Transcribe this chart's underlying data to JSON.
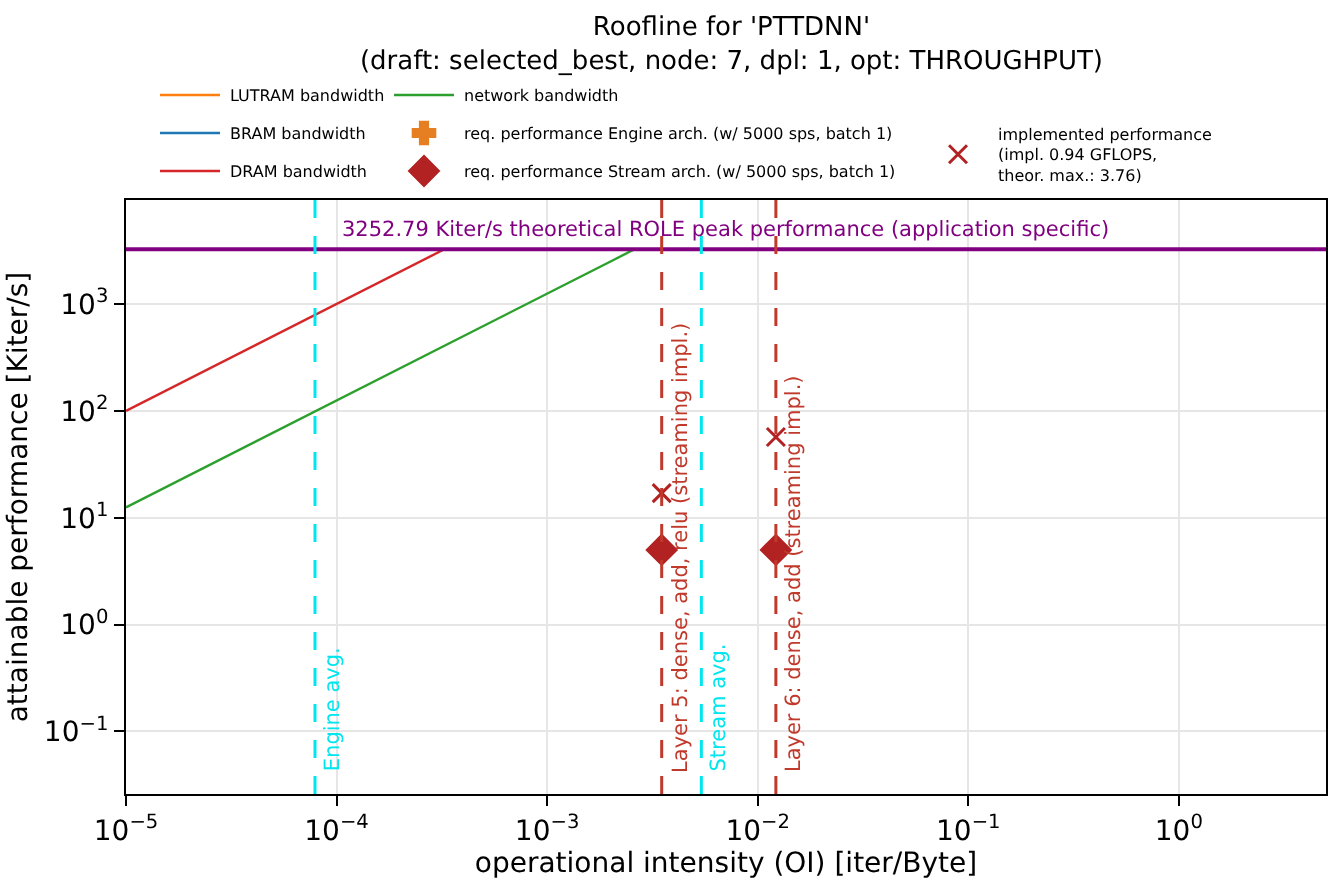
{
  "chart_data": {
    "type": "line",
    "title": "Roofline for 'PTTDNN'\n(draft: selected_best, node: 7, dpl: 1, opt: THROUGHPUT)",
    "xlabel": "operational intensity (OI) [iter/Byte]",
    "ylabel": "attainable performance [Kiter/s]",
    "log": "xy",
    "grid": true,
    "legend": "top",
    "xlim": [
      1e-05,
      5
    ],
    "ylim": [
      0.026,
      9400
    ],
    "xticks": [
      {
        "value": 1e-05,
        "label": "10$^{−5}$"
      },
      {
        "value": 0.0001,
        "label": "10$^{−4}$"
      },
      {
        "value": 0.001,
        "label": "10$^{−3}$"
      },
      {
        "value": 0.01,
        "label": "10$^{−2}$"
      },
      {
        "value": 0.1,
        "label": "10$^{−1}$"
      },
      {
        "value": 1,
        "label": "10$^{0}$"
      }
    ],
    "yticks": [
      {
        "value": 0.1,
        "label": "10$^{−1}$"
      },
      {
        "value": 1,
        "label": "10$^{0}$"
      },
      {
        "value": 10,
        "label": "10$^{1}$"
      },
      {
        "value": 100,
        "label": "10$^{2}$"
      },
      {
        "value": 1000,
        "label": "10$^{3}$"
      }
    ],
    "series": [
      {
        "name": "LUTRAM bandwidth",
        "type": "line",
        "color": "#ff7f0e"
      },
      {
        "name": "BRAM bandwidth",
        "type": "line",
        "color": "#1f77b4"
      },
      {
        "name": "DRAM bandwidth",
        "type": "line",
        "color": "#d62728",
        "x": [
          1e-05,
          0.000325
        ],
        "values": [
          100,
          3252.79
        ]
      },
      {
        "name": "network bandwidth",
        "type": "line",
        "color": "#2ca02c",
        "x": [
          1e-05,
          0.002,
          0.0026
        ],
        "values": [
          12.5,
          2500,
          3252.79
        ]
      },
      {
        "name": "req. performance Engine arch. (w/ 5000 sps, batch 1)",
        "type": "scatter",
        "marker": "plus",
        "color": "#e67e22"
      },
      {
        "name": "req. performance Stream arch. (w/ 5000 sps, batch 1)",
        "type": "scatter",
        "marker": "diamond",
        "color": "#b22222",
        "x": [
          0.0035,
          0.0122
        ],
        "values": [
          5,
          5
        ]
      },
      {
        "name": "implemented performance\n(impl. 0.94 GFLOPS,\ntheor. max.: 3.76)",
        "type": "scatter",
        "marker": "cross",
        "color": "#b22222",
        "x": [
          0.0035,
          0.0122
        ],
        "values": [
          17,
          57
        ]
      }
    ],
    "ref_lines": [
      {
        "axis": "y",
        "value": 3252.79,
        "label": "3252.79 Kiter/s theoretical ROLE peak performance (application specific)",
        "color": "#800080",
        "line_style": "solid"
      },
      {
        "axis": "x",
        "value": 7.9e-05,
        "label": "Engine avg.",
        "color": "#00e5ee",
        "line_style": "dashed"
      },
      {
        "axis": "x",
        "value": 0.0054,
        "label": "Stream avg.",
        "color": "#00e5ee",
        "line_style": "dashed"
      },
      {
        "axis": "x",
        "value": 0.0035,
        "label": "Layer 5: dense, add, relu (streaming impl.)",
        "color": "#c0392b",
        "line_style": "dashed"
      },
      {
        "axis": "x",
        "value": 0.0122,
        "label": "Layer 6: dense, add (streaming impl.)",
        "color": "#c0392b",
        "line_style": "dashed"
      }
    ]
  }
}
